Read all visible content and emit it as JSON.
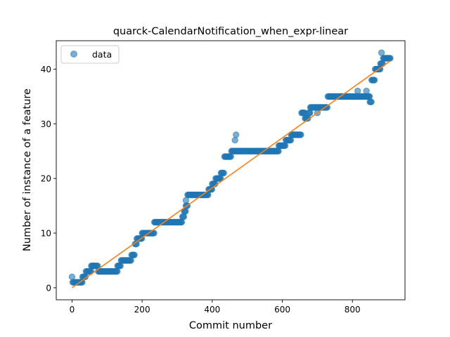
{
  "chart_data": {
    "type": "scatter",
    "title": "quarck-CalendarNotification_when_expr-linear",
    "xlabel": "Commit number",
    "ylabel": "Number of instance of a feature",
    "xlim": [
      -45,
      950
    ],
    "ylim": [
      -2.2,
      45.2
    ],
    "xticks": [
      0,
      200,
      400,
      600,
      800
    ],
    "yticks": [
      0,
      10,
      20,
      30,
      40
    ],
    "legend": {
      "position": "top-left",
      "label": "data"
    },
    "colors": {
      "points": "#1f77b4",
      "fit": "#ff7f0e"
    },
    "series": [
      {
        "name": "data",
        "kind": "points",
        "steps": [
          [
            0,
            2
          ],
          [
            2,
            1
          ],
          [
            25,
            1
          ],
          [
            30,
            2
          ],
          [
            40,
            3
          ],
          [
            55,
            4
          ],
          [
            75,
            3
          ],
          [
            130,
            4
          ],
          [
            140,
            5
          ],
          [
            170,
            6
          ],
          [
            180,
            8
          ],
          [
            185,
            9
          ],
          [
            200,
            10
          ],
          [
            235,
            12
          ],
          [
            315,
            13
          ],
          [
            320,
            14
          ],
          [
            325,
            15
          ],
          [
            330,
            17
          ],
          [
            390,
            18
          ],
          [
            395,
            18
          ],
          [
            400,
            19
          ],
          [
            410,
            20
          ],
          [
            425,
            21
          ],
          [
            435,
            24
          ],
          [
            455,
            25
          ],
          [
            590,
            26
          ],
          [
            610,
            27
          ],
          [
            625,
            28
          ],
          [
            655,
            32
          ],
          [
            665,
            31
          ],
          [
            675,
            32
          ],
          [
            680,
            33
          ],
          [
            730,
            35
          ],
          [
            835,
            35
          ],
          [
            850,
            34
          ],
          [
            855,
            38
          ],
          [
            865,
            40
          ],
          [
            880,
            41
          ],
          [
            888,
            42
          ],
          [
            908,
            42
          ]
        ],
        "outliers": [
          [
            465,
            27
          ],
          [
            468,
            28
          ],
          [
            325,
            16
          ],
          [
            883,
            43
          ],
          [
            700,
            32
          ],
          [
            815,
            36
          ],
          [
            840,
            36
          ]
        ]
      },
      {
        "name": "fit",
        "kind": "line",
        "x": [
          0,
          908
        ],
        "y": [
          0,
          41.5
        ]
      }
    ]
  }
}
